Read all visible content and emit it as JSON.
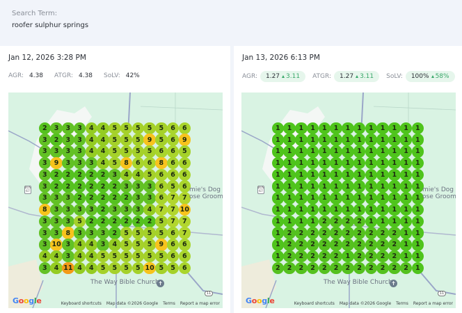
{
  "search": {
    "label": "Search Term:",
    "value": "roofer sulphur springs"
  },
  "colors": {
    "rank_1": "#4fc41c",
    "rank_2": "#55c11f",
    "rank_3": "#62c125",
    "rank_4": "#94cc22",
    "rank_5": "#a5d12a",
    "rank_6": "#a9d52c",
    "rank_7": "#b2d62e",
    "rank_8_10": "#f7c31d",
    "rank_11_plus": "#f49a19",
    "delta_positive": "#3aa86a",
    "pill_bg": "#e6f6ec"
  },
  "map_labels": {
    "church": "The Way Bible Church",
    "business_line1": "mie's Dog",
    "business_line2": "ose Groomi",
    "highway_shield": "67",
    "highway_shield_top": "BUS",
    "route_badge": "11",
    "google": "Google",
    "keyboard_shortcuts": "Keyboard shortcuts",
    "map_data": "Map data ©2026 Google",
    "terms": "Terms",
    "report": "Report a map error"
  },
  "scans": [
    {
      "date": "Jan 12, 2026 3:28 PM",
      "metrics": [
        {
          "label": "AGR:",
          "value": "4.38"
        },
        {
          "label": "ATGR:",
          "value": "4.38"
        },
        {
          "label": "SoLV:",
          "value": "42%"
        }
      ],
      "grid": [
        [
          2,
          3,
          3,
          3,
          4,
          4,
          5,
          5,
          5,
          5,
          5,
          6,
          6
        ],
        [
          3,
          2,
          3,
          3,
          4,
          4,
          5,
          5,
          5,
          9,
          5,
          6,
          9
        ],
        [
          3,
          3,
          3,
          3,
          4,
          4,
          5,
          5,
          5,
          5,
          6,
          6,
          5
        ],
        [
          3,
          9,
          3,
          3,
          3,
          4,
          5,
          8,
          6,
          6,
          8,
          6,
          6
        ],
        [
          3,
          2,
          2,
          2,
          2,
          2,
          3,
          4,
          4,
          5,
          6,
          6,
          6
        ],
        [
          3,
          2,
          2,
          2,
          2,
          2,
          2,
          3,
          3,
          3,
          6,
          5,
          6
        ],
        [
          3,
          3,
          3,
          2,
          2,
          2,
          2,
          2,
          3,
          3,
          6,
          7,
          7
        ],
        [
          8,
          3,
          3,
          3,
          3,
          2,
          3,
          3,
          3,
          4,
          7,
          7,
          10
        ],
        [
          3,
          3,
          3,
          5,
          2,
          2,
          2,
          2,
          2,
          2,
          5,
          7,
          7
        ],
        [
          3,
          3,
          8,
          3,
          3,
          3,
          2,
          5,
          5,
          5,
          5,
          6,
          7
        ],
        [
          3,
          10,
          3,
          4,
          4,
          3,
          4,
          5,
          5,
          5,
          9,
          6,
          6
        ],
        [
          4,
          4,
          3,
          4,
          4,
          5,
          5,
          5,
          5,
          5,
          5,
          6,
          6
        ],
        [
          3,
          4,
          11,
          4,
          4,
          5,
          5,
          5,
          5,
          10,
          5,
          5,
          6
        ]
      ]
    },
    {
      "date": "Jan 13, 2026 6:13 PM",
      "metrics": [
        {
          "label": "AGR:",
          "value": "1.27",
          "delta": "3.11"
        },
        {
          "label": "ATGR:",
          "value": "1.27",
          "delta": "3.11"
        },
        {
          "label": "SoLV:",
          "value": "100%",
          "delta": "58%"
        }
      ],
      "grid": [
        [
          1,
          1,
          1,
          1,
          1,
          1,
          1,
          1,
          1,
          1,
          1,
          1,
          1
        ],
        [
          1,
          1,
          1,
          1,
          1,
          1,
          1,
          1,
          1,
          1,
          1,
          1,
          1
        ],
        [
          1,
          1,
          1,
          1,
          1,
          1,
          1,
          1,
          1,
          1,
          1,
          1,
          1
        ],
        [
          1,
          1,
          1,
          1,
          1,
          1,
          1,
          1,
          1,
          1,
          1,
          1,
          1
        ],
        [
          1,
          1,
          1,
          1,
          1,
          1,
          1,
          1,
          1,
          1,
          1,
          1,
          1
        ],
        [
          1,
          1,
          1,
          1,
          1,
          1,
          1,
          1,
          1,
          1,
          1,
          1,
          1
        ],
        [
          1,
          1,
          1,
          1,
          1,
          1,
          1,
          1,
          1,
          1,
          1,
          1,
          1
        ],
        [
          1,
          1,
          1,
          1,
          1,
          1,
          1,
          1,
          1,
          1,
          1,
          1,
          1
        ],
        [
          1,
          1,
          1,
          1,
          2,
          2,
          2,
          2,
          1,
          1,
          1,
          1,
          1
        ],
        [
          1,
          2,
          2,
          2,
          2,
          2,
          2,
          2,
          2,
          2,
          2,
          1,
          1
        ],
        [
          1,
          2,
          2,
          2,
          2,
          2,
          2,
          2,
          2,
          2,
          2,
          1,
          1
        ],
        [
          1,
          2,
          2,
          2,
          2,
          2,
          1,
          2,
          2,
          2,
          2,
          1,
          1
        ],
        [
          2,
          2,
          2,
          2,
          2,
          2,
          2,
          2,
          2,
          2,
          2,
          2,
          1
        ]
      ]
    }
  ]
}
